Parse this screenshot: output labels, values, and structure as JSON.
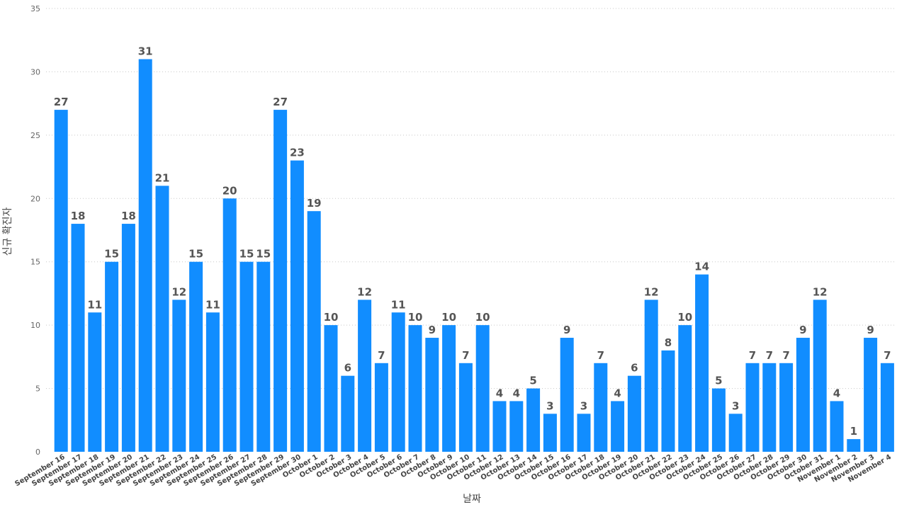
{
  "chart_data": {
    "type": "bar",
    "xlabel": "날짜",
    "ylabel": "신규 확진자",
    "ylim": [
      0,
      35
    ],
    "yticks": [
      0,
      5,
      10,
      15,
      20,
      25,
      30,
      35
    ],
    "grid": true,
    "bar_color": "#118DFF",
    "data_labels": true,
    "categories": [
      "September 16",
      "September 17",
      "September 18",
      "September 19",
      "September 20",
      "September 21",
      "September 22",
      "September 23",
      "September 24",
      "September 25",
      "September 26",
      "September 27",
      "September 28",
      "September 29",
      "September 30",
      "October 1",
      "October 2",
      "October 3",
      "October 4",
      "October 5",
      "October 6",
      "October 7",
      "October 8",
      "October 9",
      "October 10",
      "October 11",
      "October 12",
      "October 13",
      "October 14",
      "October 15",
      "October 16",
      "October 17",
      "October 18",
      "October 19",
      "October 20",
      "October 21",
      "October 22",
      "October 23",
      "October 24",
      "October 25",
      "October 26",
      "October 27",
      "October 28",
      "October 29",
      "October 30",
      "October 31",
      "November 1",
      "November 2",
      "November 3",
      "November 4"
    ],
    "values": [
      27,
      18,
      11,
      15,
      18,
      31,
      21,
      12,
      15,
      11,
      20,
      15,
      15,
      27,
      23,
      19,
      10,
      6,
      12,
      7,
      11,
      10,
      9,
      10,
      7,
      10,
      4,
      4,
      5,
      3,
      9,
      3,
      7,
      4,
      6,
      12,
      8,
      10,
      14,
      5,
      3,
      7,
      7,
      7,
      9,
      12,
      4,
      1,
      9,
      7
    ]
  }
}
